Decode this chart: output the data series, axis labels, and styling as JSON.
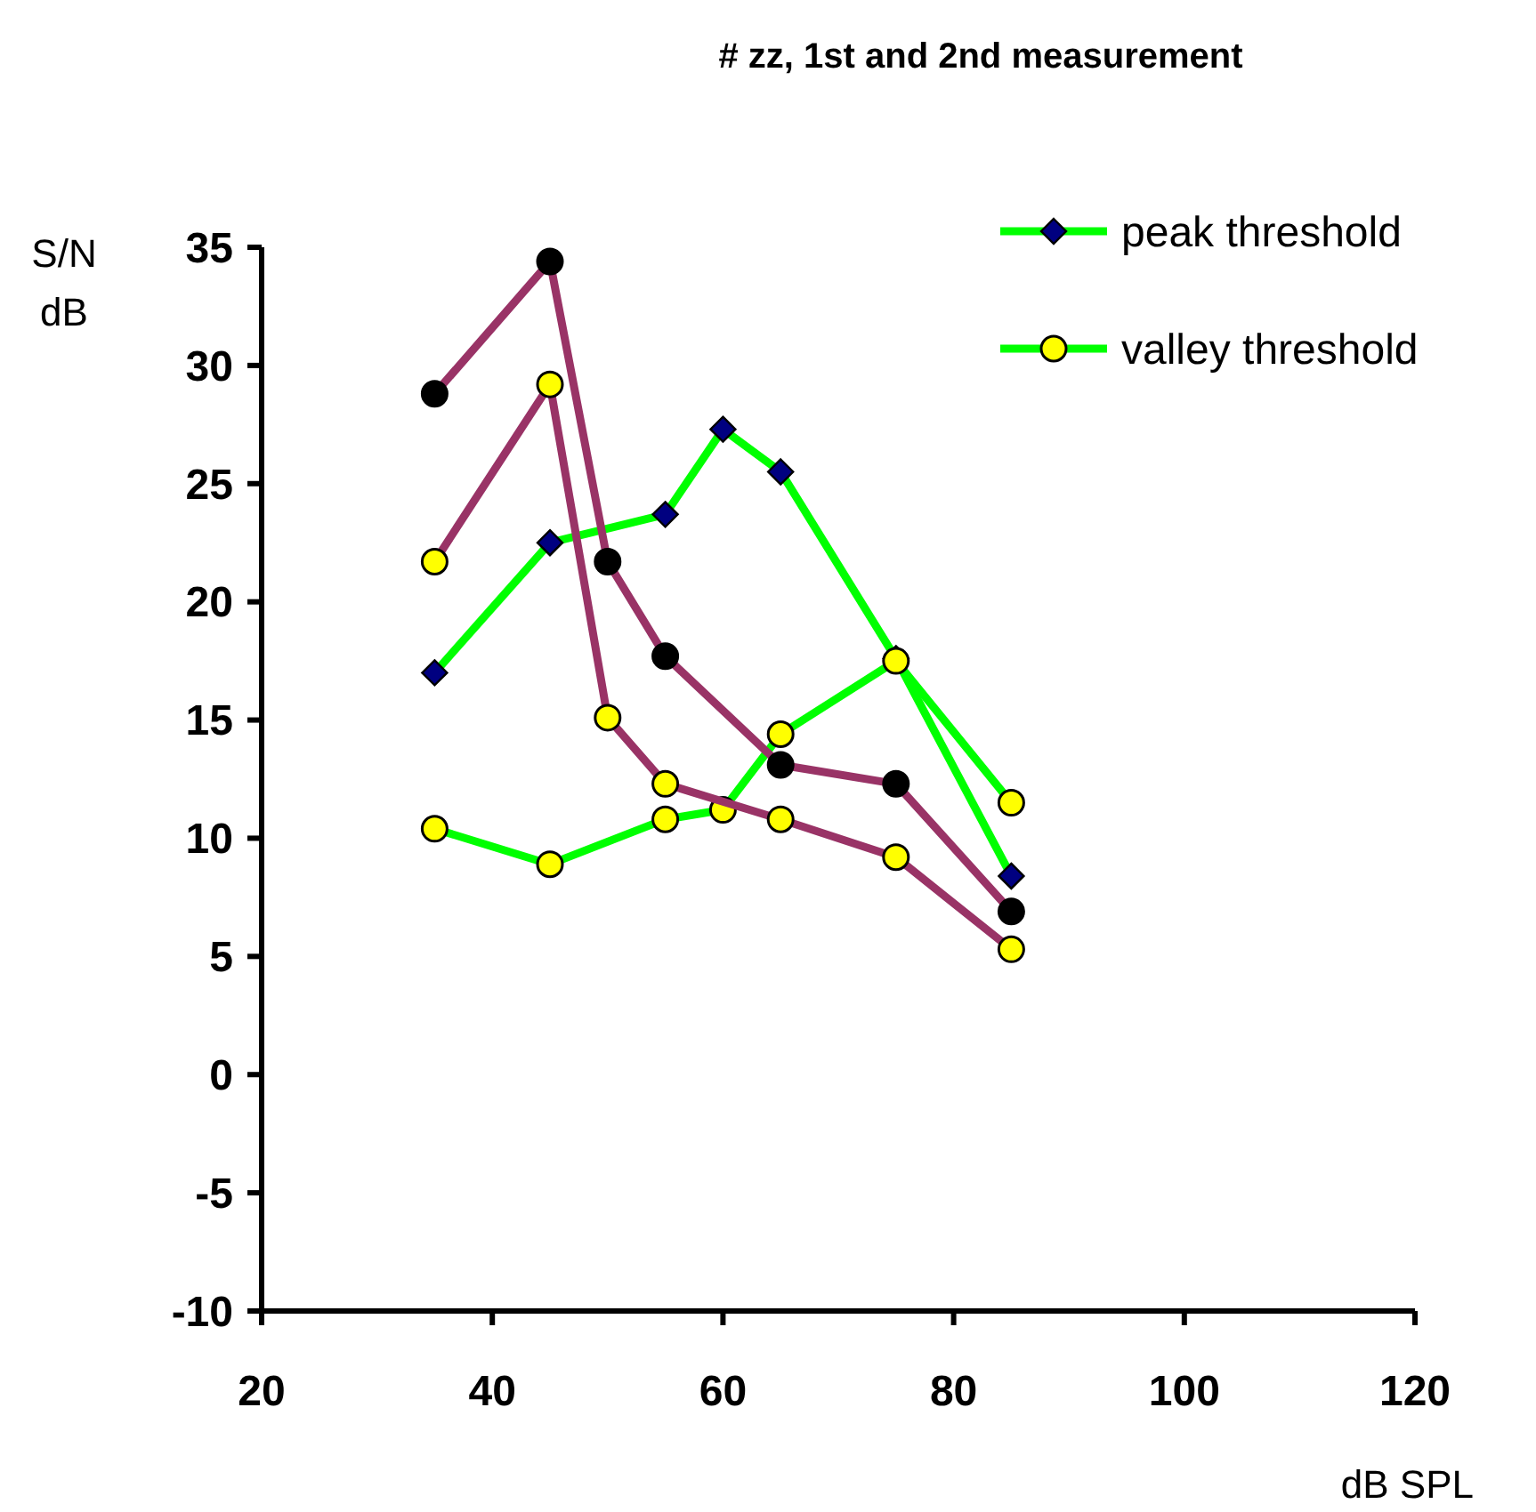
{
  "chart_data": {
    "type": "line",
    "title": "# zz, 1st and 2nd measurement",
    "xlabel": "dB SPL",
    "ylabel": "S/N dB",
    "xlim": [
      20,
      120
    ],
    "xticks": [
      20,
      40,
      60,
      80,
      100,
      120
    ],
    "ylim": [
      -10,
      35
    ],
    "yticks": [
      -10,
      -5,
      0,
      5,
      10,
      15,
      20,
      25,
      30,
      35
    ],
    "grid": false,
    "legend": "top right",
    "series": [
      {
        "name": "peak threshold",
        "color": "#00ff00",
        "marker": "diamond",
        "colors": [
          "#000080",
          "#000080",
          "#000080",
          "#000080",
          "#000080",
          "#000080",
          "#000080"
        ],
        "x": [
          35,
          45,
          55,
          60,
          65,
          75,
          85
        ],
        "values": [
          17,
          22.5,
          23.7,
          27.3,
          25.5,
          17.6,
          8.4
        ]
      },
      {
        "name": "valley threshold",
        "color": "#00ff00",
        "marker": "circle",
        "colors": [
          "#ffff00",
          "#ffff00",
          "#ffff00",
          "#ffff00",
          "#ffff00",
          "#ffff00",
          "#ffff00"
        ],
        "x": [
          35,
          45,
          55,
          60,
          65,
          75,
          85
        ],
        "values": [
          10.4,
          8.9,
          10.8,
          11.2,
          14.4,
          17.5,
          11.5
        ]
      },
      {
        "color": "#993366",
        "marker": "circle",
        "colors": [
          "#000000",
          "#000000",
          "#000000",
          "#000000",
          "#000000",
          "#000000",
          "#000000"
        ],
        "x": [
          35,
          45,
          50,
          55,
          65,
          75,
          85
        ],
        "values": [
          28.8,
          34.4,
          21.7,
          17.7,
          13.1,
          12.3,
          6.9
        ]
      },
      {
        "color": "#993366",
        "marker": "circle",
        "colors": [
          "#ffff00",
          "#ffff00",
          "#ffff00",
          "#ffff00",
          "#ffff00",
          "#ffff00",
          "#ffff00"
        ],
        "x": [
          35,
          45,
          50,
          55,
          65,
          75,
          85
        ],
        "values": [
          21.7,
          29.2,
          15.1,
          12.3,
          10.8,
          9.2,
          5.3
        ]
      }
    ]
  }
}
